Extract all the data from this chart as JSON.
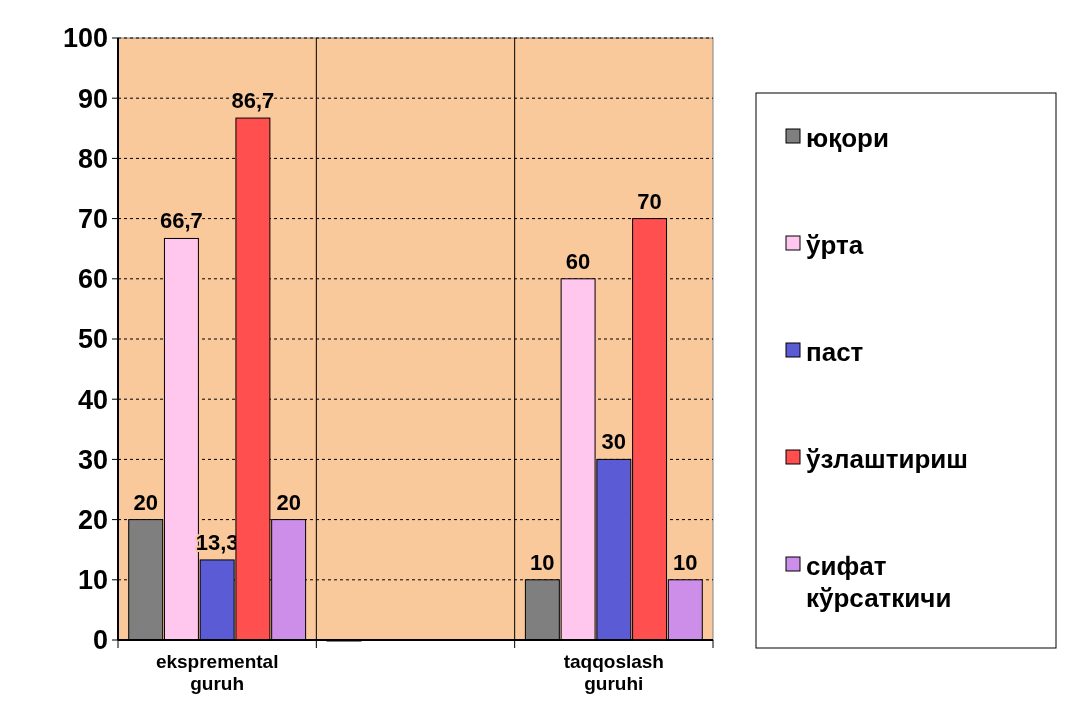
{
  "chart_data": {
    "type": "bar",
    "categories": [
      "ekspremental guruh",
      null,
      "taqqoslash guruhi"
    ],
    "series": [
      {
        "name": "юқори",
        "color": "#7f7f7f",
        "values": [
          20,
          0,
          10
        ],
        "value_labels": [
          "20",
          null,
          "10"
        ]
      },
      {
        "name": "ўрта",
        "color": "#ffc6ee",
        "values": [
          66.7,
          null,
          60
        ],
        "value_labels": [
          "66,7",
          null,
          "60"
        ]
      },
      {
        "name": "паст",
        "color": "#5b5bd6",
        "values": [
          13.3,
          null,
          30
        ],
        "value_labels": [
          "13,3",
          null,
          "30"
        ]
      },
      {
        "name": "ўзлаштириш",
        "color": "#ff4f4f",
        "values": [
          86.7,
          null,
          70
        ],
        "value_labels": [
          "86,7",
          null,
          "70"
        ]
      },
      {
        "name": "сифат кўрсаткичи",
        "color": "#cc8ee8",
        "values": [
          20,
          null,
          10
        ],
        "value_labels": [
          "20",
          null,
          "10"
        ]
      }
    ],
    "ylim": [
      0,
      100
    ],
    "yticks": [
      0,
      10,
      20,
      30,
      40,
      50,
      60,
      70,
      80,
      90,
      100
    ],
    "grid": "y",
    "legend": "right"
  }
}
